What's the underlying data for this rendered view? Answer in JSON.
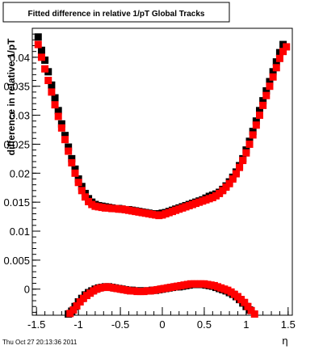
{
  "title": "Fitted difference in relative 1/pT  Global Tracks",
  "timestamp": "Thu Oct 27 20:13:36 2011",
  "colors": {
    "series_black": "#000000",
    "series_red": "#ff0000",
    "axis": "#000000",
    "background": "#ffffff"
  },
  "chart_data": {
    "type": "scatter",
    "title": "Fitted difference in relative 1/pT  Global Tracks",
    "xlabel": "η",
    "ylabel": "difference in relative 1/pT",
    "xlim": [
      -1.55,
      1.55
    ],
    "ylim": [
      -0.0045,
      0.045
    ],
    "grid": false,
    "legend": "none",
    "x_ticks": [
      {
        "value": -1.5,
        "label": "-1.5"
      },
      {
        "value": -1.0,
        "label": "-1"
      },
      {
        "value": -0.5,
        "label": "-0.5"
      },
      {
        "value": 0.0,
        "label": "0"
      },
      {
        "value": 0.5,
        "label": "0.5"
      },
      {
        "value": 1.0,
        "label": "1"
      },
      {
        "value": 1.5,
        "label": "1.5"
      }
    ],
    "y_ticks": [
      {
        "value": 0.0,
        "label": "0"
      },
      {
        "value": 0.005,
        "label": "0.005"
      },
      {
        "value": 0.01,
        "label": "0.01"
      },
      {
        "value": 0.015,
        "label": "0.015"
      },
      {
        "value": 0.02,
        "label": "0.02"
      },
      {
        "value": 0.025,
        "label": "0.025"
      },
      {
        "value": 0.03,
        "label": "0.03"
      },
      {
        "value": 0.035,
        "label": "0.035"
      },
      {
        "value": 0.04,
        "label": "0.04"
      }
    ],
    "series": [
      {
        "color": "#000000",
        "points": [
          [
            -1.48,
            0.0435
          ],
          [
            -1.44,
            0.0412
          ],
          [
            -1.4,
            0.0395
          ],
          [
            -1.36,
            0.0375
          ],
          [
            -1.32,
            0.0352
          ],
          [
            -1.28,
            0.033
          ],
          [
            -1.24,
            0.0308
          ],
          [
            -1.2,
            0.0285
          ],
          [
            -1.16,
            0.0265
          ],
          [
            -1.12,
            0.0245
          ],
          [
            -1.08,
            0.0225
          ],
          [
            -1.04,
            0.0207
          ],
          [
            -1.0,
            0.019
          ],
          [
            -0.96,
            0.0177
          ],
          [
            -0.92,
            0.0165
          ],
          [
            -0.88,
            0.0156
          ],
          [
            -0.84,
            0.015
          ],
          [
            -0.8,
            0.0146
          ],
          [
            -0.76,
            0.0144
          ],
          [
            -0.72,
            0.0143
          ],
          [
            -0.68,
            0.0142
          ],
          [
            -0.64,
            0.0141
          ],
          [
            -0.6,
            0.014
          ],
          [
            -0.56,
            0.0139
          ],
          [
            -0.52,
            0.0139
          ],
          [
            -0.48,
            0.0138
          ],
          [
            -0.44,
            0.0137
          ],
          [
            -0.4,
            0.0137
          ],
          [
            -0.36,
            0.0136
          ],
          [
            -0.32,
            0.0135
          ],
          [
            -0.28,
            0.0134
          ],
          [
            -0.24,
            0.0133
          ],
          [
            -0.2,
            0.0132
          ],
          [
            -0.16,
            0.0131
          ],
          [
            -0.12,
            0.013
          ],
          [
            -0.08,
            0.0129
          ],
          [
            -0.04,
            0.013
          ],
          [
            0.0,
            0.0131
          ],
          [
            0.04,
            0.0132
          ],
          [
            0.08,
            0.0134
          ],
          [
            0.12,
            0.0136
          ],
          [
            0.16,
            0.0138
          ],
          [
            0.2,
            0.014
          ],
          [
            0.24,
            0.0142
          ],
          [
            0.28,
            0.0144
          ],
          [
            0.32,
            0.0146
          ],
          [
            0.36,
            0.0148
          ],
          [
            0.4,
            0.015
          ],
          [
            0.44,
            0.0152
          ],
          [
            0.48,
            0.0154
          ],
          [
            0.52,
            0.0157
          ],
          [
            0.56,
            0.016
          ],
          [
            0.6,
            0.0162
          ],
          [
            0.64,
            0.0164
          ],
          [
            0.68,
            0.0167
          ],
          [
            0.72,
            0.0172
          ],
          [
            0.76,
            0.0178
          ],
          [
            0.8,
            0.0185
          ],
          [
            0.84,
            0.0193
          ],
          [
            0.88,
            0.0202
          ],
          [
            0.92,
            0.0213
          ],
          [
            0.96,
            0.0225
          ],
          [
            1.0,
            0.024
          ],
          [
            1.04,
            0.0255
          ],
          [
            1.08,
            0.0272
          ],
          [
            1.12,
            0.029
          ],
          [
            1.16,
            0.0308
          ],
          [
            1.2,
            0.0325
          ],
          [
            1.24,
            0.0342
          ],
          [
            1.28,
            0.0358
          ],
          [
            1.32,
            0.0375
          ],
          [
            1.36,
            0.0392
          ],
          [
            1.4,
            0.0408
          ],
          [
            1.44,
            0.0422
          ],
          [
            -1.12,
            -0.0043
          ],
          [
            -1.08,
            -0.0038
          ],
          [
            -1.04,
            -0.003
          ],
          [
            -1.0,
            -0.0022
          ],
          [
            -0.96,
            -0.0016
          ],
          [
            -0.92,
            -0.001
          ],
          [
            -0.88,
            -0.0006
          ],
          [
            -0.84,
            -0.0003
          ],
          [
            -0.8,
            0.0
          ],
          [
            -0.76,
            0.0002
          ],
          [
            -0.72,
            0.0003
          ],
          [
            -0.68,
            0.0004
          ],
          [
            -0.64,
            0.0004
          ],
          [
            -0.6,
            0.0003
          ],
          [
            -0.56,
            0.0002
          ],
          [
            -0.52,
            0.0001
          ],
          [
            -0.48,
            0.0
          ],
          [
            -0.44,
            -0.0001
          ],
          [
            -0.4,
            -0.0002
          ],
          [
            -0.36,
            -0.0002
          ],
          [
            -0.32,
            -0.0003
          ],
          [
            -0.28,
            -0.0003
          ],
          [
            -0.24,
            -0.0003
          ],
          [
            -0.2,
            -0.0003
          ],
          [
            -0.16,
            -0.0003
          ],
          [
            -0.12,
            -0.0002
          ],
          [
            -0.08,
            -0.0002
          ],
          [
            -0.04,
            -0.0001
          ],
          [
            0.0,
            0.0
          ],
          [
            0.04,
            0.0001
          ],
          [
            0.08,
            0.0002
          ],
          [
            0.12,
            0.0003
          ],
          [
            0.16,
            0.0004
          ],
          [
            0.2,
            0.0004
          ],
          [
            0.24,
            0.0005
          ],
          [
            0.28,
            0.0006
          ],
          [
            0.32,
            0.0007
          ],
          [
            0.36,
            0.0008
          ],
          [
            0.4,
            0.0008
          ],
          [
            0.44,
            0.0008
          ],
          [
            0.48,
            0.0008
          ],
          [
            0.52,
            0.0007
          ],
          [
            0.56,
            0.0006
          ],
          [
            0.6,
            0.0005
          ],
          [
            0.64,
            0.0003
          ],
          [
            0.68,
            0.0001
          ],
          [
            0.72,
            -0.0001
          ],
          [
            0.76,
            -0.0003
          ],
          [
            0.8,
            -0.0006
          ],
          [
            0.84,
            -0.0009
          ],
          [
            0.88,
            -0.0013
          ],
          [
            0.92,
            -0.0018
          ],
          [
            0.96,
            -0.0024
          ],
          [
            1.0,
            -0.003
          ],
          [
            1.04,
            -0.0036
          ]
        ]
      },
      {
        "color": "#ff0000",
        "points": [
          [
            -1.48,
            0.0422
          ],
          [
            -1.44,
            0.04
          ],
          [
            -1.4,
            0.038
          ],
          [
            -1.36,
            0.036
          ],
          [
            -1.32,
            0.034
          ],
          [
            -1.28,
            0.0318
          ],
          [
            -1.24,
            0.0298
          ],
          [
            -1.2,
            0.0278
          ],
          [
            -1.16,
            0.0258
          ],
          [
            -1.12,
            0.0238
          ],
          [
            -1.08,
            0.0218
          ],
          [
            -1.04,
            0.02
          ],
          [
            -1.0,
            0.0184
          ],
          [
            -0.96,
            0.017
          ],
          [
            -0.92,
            0.0159
          ],
          [
            -0.88,
            0.0151
          ],
          [
            -0.84,
            0.0146
          ],
          [
            -0.8,
            0.0143
          ],
          [
            -0.76,
            0.0142
          ],
          [
            -0.72,
            0.0141
          ],
          [
            -0.68,
            0.014
          ],
          [
            -0.64,
            0.014
          ],
          [
            -0.6,
            0.0139
          ],
          [
            -0.56,
            0.0139
          ],
          [
            -0.52,
            0.0138
          ],
          [
            -0.48,
            0.0138
          ],
          [
            -0.44,
            0.0137
          ],
          [
            -0.4,
            0.0136
          ],
          [
            -0.36,
            0.0135
          ],
          [
            -0.32,
            0.0134
          ],
          [
            -0.28,
            0.0133
          ],
          [
            -0.24,
            0.0132
          ],
          [
            -0.2,
            0.0131
          ],
          [
            -0.16,
            0.013
          ],
          [
            -0.12,
            0.0129
          ],
          [
            -0.08,
            0.0128
          ],
          [
            -0.04,
            0.0127
          ],
          [
            0.0,
            0.0128
          ],
          [
            0.04,
            0.013
          ],
          [
            0.08,
            0.0132
          ],
          [
            0.12,
            0.0134
          ],
          [
            0.16,
            0.0136
          ],
          [
            0.2,
            0.0138
          ],
          [
            0.24,
            0.014
          ],
          [
            0.28,
            0.0142
          ],
          [
            0.32,
            0.0144
          ],
          [
            0.36,
            0.0146
          ],
          [
            0.4,
            0.0148
          ],
          [
            0.44,
            0.015
          ],
          [
            0.48,
            0.0152
          ],
          [
            0.52,
            0.0154
          ],
          [
            0.56,
            0.0156
          ],
          [
            0.6,
            0.0158
          ],
          [
            0.64,
            0.0161
          ],
          [
            0.68,
            0.0165
          ],
          [
            0.72,
            0.017
          ],
          [
            0.76,
            0.0176
          ],
          [
            0.8,
            0.0182
          ],
          [
            0.84,
            0.019
          ],
          [
            0.88,
            0.0199
          ],
          [
            0.92,
            0.021
          ],
          [
            0.96,
            0.0222
          ],
          [
            1.0,
            0.0235
          ],
          [
            1.04,
            0.025
          ],
          [
            1.08,
            0.0266
          ],
          [
            1.12,
            0.0283
          ],
          [
            1.16,
            0.03
          ],
          [
            1.2,
            0.0317
          ],
          [
            1.24,
            0.0334
          ],
          [
            1.28,
            0.035
          ],
          [
            1.32,
            0.0366
          ],
          [
            1.36,
            0.0382
          ],
          [
            1.4,
            0.0398
          ],
          [
            1.44,
            0.041
          ],
          [
            1.48,
            0.0418
          ],
          [
            -1.1,
            -0.0042
          ],
          [
            -1.06,
            -0.0036
          ],
          [
            -1.02,
            -0.0029
          ],
          [
            -0.98,
            -0.0022
          ],
          [
            -0.94,
            -0.0016
          ],
          [
            -0.9,
            -0.0011
          ],
          [
            -0.86,
            -0.0007
          ],
          [
            -0.82,
            -0.0003
          ],
          [
            -0.78,
            0.0
          ],
          [
            -0.74,
            0.0002
          ],
          [
            -0.7,
            0.0003
          ],
          [
            -0.66,
            0.0004
          ],
          [
            -0.62,
            0.0003
          ],
          [
            -0.58,
            0.0002
          ],
          [
            -0.54,
            0.0001
          ],
          [
            -0.5,
            0.0
          ],
          [
            -0.46,
            -0.0001
          ],
          [
            -0.42,
            -0.0002
          ],
          [
            -0.38,
            -0.0003
          ],
          [
            -0.34,
            -0.0003
          ],
          [
            -0.3,
            -0.0004
          ],
          [
            -0.26,
            -0.0004
          ],
          [
            -0.22,
            -0.0004
          ],
          [
            -0.18,
            -0.0003
          ],
          [
            -0.14,
            -0.0003
          ],
          [
            -0.1,
            -0.0002
          ],
          [
            -0.06,
            -0.0001
          ],
          [
            -0.02,
            0.0
          ],
          [
            0.02,
            0.0001
          ],
          [
            0.06,
            0.0002
          ],
          [
            0.1,
            0.0003
          ],
          [
            0.14,
            0.0004
          ],
          [
            0.18,
            0.0005
          ],
          [
            0.22,
            0.0006
          ],
          [
            0.26,
            0.0007
          ],
          [
            0.3,
            0.0008
          ],
          [
            0.34,
            0.0009
          ],
          [
            0.38,
            0.0009
          ],
          [
            0.42,
            0.0009
          ],
          [
            0.46,
            0.0009
          ],
          [
            0.5,
            0.0009
          ],
          [
            0.54,
            0.0008
          ],
          [
            0.58,
            0.0007
          ],
          [
            0.62,
            0.0006
          ],
          [
            0.66,
            0.0004
          ],
          [
            0.7,
            0.0002
          ],
          [
            0.74,
            0.0
          ],
          [
            0.78,
            -0.0002
          ],
          [
            0.82,
            -0.0005
          ],
          [
            0.86,
            -0.0009
          ],
          [
            0.9,
            -0.0013
          ],
          [
            0.94,
            -0.0018
          ],
          [
            0.98,
            -0.0023
          ],
          [
            1.02,
            -0.003
          ],
          [
            1.06,
            -0.0037
          ],
          [
            1.1,
            -0.0043
          ]
        ]
      }
    ]
  }
}
